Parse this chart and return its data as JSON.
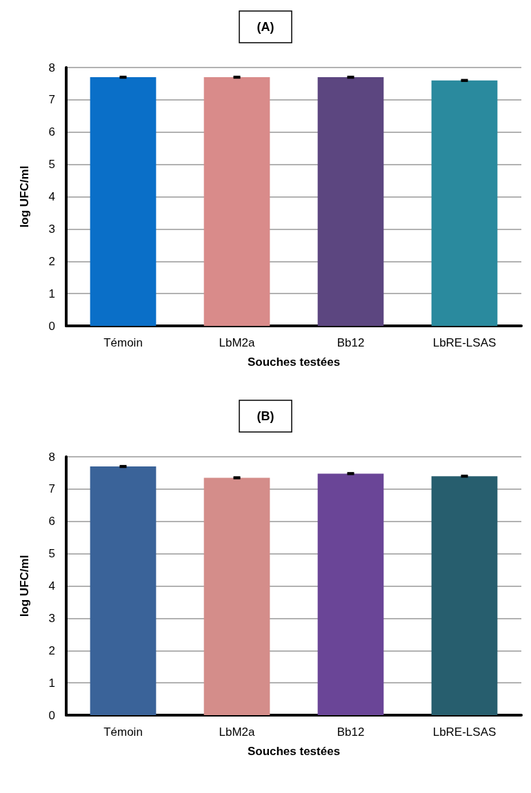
{
  "chart_data": [
    {
      "type": "bar",
      "title": "(A)",
      "xlabel": "Souches testées",
      "ylabel": "log UFC/ml",
      "categories": [
        "Témoin",
        "LbM2a",
        "Bb12",
        "LbRE-LSAS"
      ],
      "values": [
        7.7,
        7.7,
        7.7,
        7.6
      ],
      "colors": [
        "#0a6fc8",
        "#d98b8a",
        "#5c4680",
        "#2a8a9e"
      ],
      "errors": [
        0.02,
        0.02,
        0.02,
        0.02
      ],
      "ylim": [
        0,
        8
      ],
      "yticks": [
        0,
        1,
        2,
        3,
        4,
        5,
        6,
        7,
        8
      ],
      "grid": "y"
    },
    {
      "type": "bar",
      "title": "(B)",
      "xlabel": "Souches testées",
      "ylabel": "log UFC/ml",
      "categories": [
        "Témoin",
        "LbM2a",
        "Bb12",
        "LbRE-LSAS"
      ],
      "values": [
        7.7,
        7.35,
        7.48,
        7.4
      ],
      "colors": [
        "#3a6399",
        "#d48d8a",
        "#6a4597",
        "#275e6e"
      ],
      "errors": [
        0.02,
        0.02,
        0.02,
        0.02
      ],
      "ylim": [
        0,
        8
      ],
      "yticks": [
        0,
        1,
        2,
        3,
        4,
        5,
        6,
        7,
        8
      ],
      "grid": "y"
    }
  ]
}
